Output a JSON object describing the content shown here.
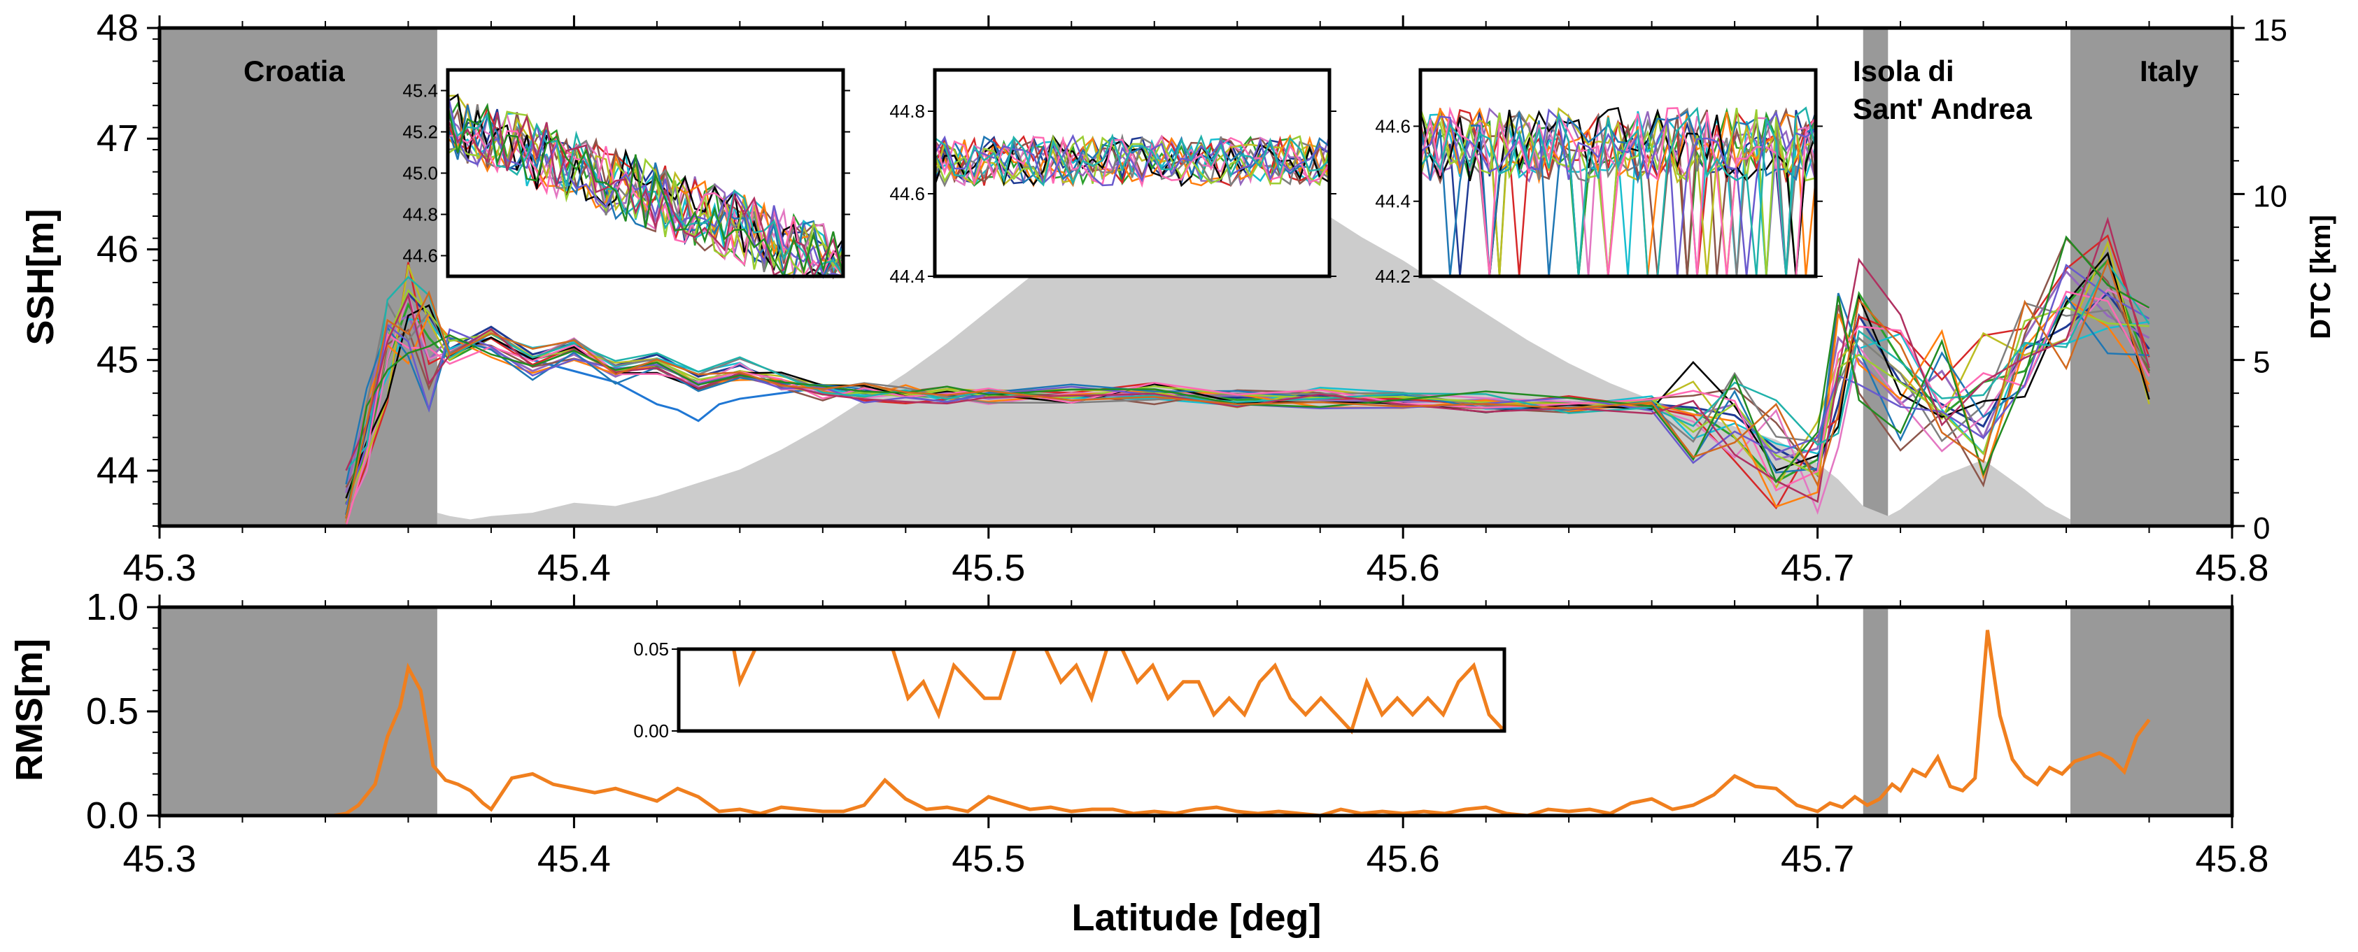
{
  "chart_data": [
    {
      "type": "line",
      "panel": "top",
      "xlabel": "",
      "ylabel": "SSH[m]",
      "ylabel_right": "DTC [km]",
      "xlim": [
        45.3,
        45.8
      ],
      "ylim": [
        43.5,
        48.0
      ],
      "ylim_right": [
        0,
        15
      ],
      "xticks": [
        45.3,
        45.4,
        45.5,
        45.6,
        45.7,
        45.8
      ],
      "xtick_labels": [
        "45.3",
        "45.4",
        "45.5",
        "45.6",
        "45.7",
        "45.8"
      ],
      "yticks": [
        44,
        45,
        46,
        47,
        48
      ],
      "ytick_labels": [
        "44",
        "45",
        "46",
        "47",
        "48"
      ],
      "yticks_right": [
        0,
        5,
        10,
        15
      ],
      "ytick_labels_right": [
        "0",
        "5",
        "10",
        "15"
      ],
      "grid": false,
      "land_regions": [
        {
          "label": "Croatia",
          "x0": 45.3,
          "x1": 45.367
        },
        {
          "label": "Isola di Sant' Andrea",
          "label_lines": [
            "Isola di",
            "Sant' Andrea"
          ],
          "x0": 45.711,
          "x1": 45.717
        },
        {
          "label": "Italy",
          "x0": 45.761,
          "x1": 45.8
        }
      ],
      "land_color": "#999999",
      "dtc_color": "#cccccc",
      "dtc_profile": {
        "lat": [
          45.367,
          45.37,
          45.375,
          45.38,
          45.39,
          45.4,
          45.41,
          45.42,
          45.43,
          45.44,
          45.45,
          45.46,
          45.47,
          45.48,
          45.49,
          45.5,
          45.51,
          45.52,
          45.53,
          45.54,
          45.55,
          45.56,
          45.57,
          45.58,
          45.585,
          45.59,
          45.6,
          45.61,
          45.62,
          45.63,
          45.64,
          45.65,
          45.66,
          45.67,
          45.68,
          45.69,
          45.7,
          45.705,
          45.711,
          45.717,
          45.72,
          45.725,
          45.73,
          45.74,
          45.75,
          45.755,
          45.761
        ],
        "dtc_km": [
          0.4,
          0.3,
          0.2,
          0.3,
          0.4,
          0.7,
          0.6,
          0.9,
          1.3,
          1.7,
          2.3,
          3.0,
          3.8,
          4.6,
          5.5,
          6.5,
          7.5,
          8.3,
          9.0,
          9.6,
          10.0,
          10.2,
          10.0,
          9.5,
          9.1,
          8.7,
          8.0,
          7.2,
          6.4,
          5.6,
          4.9,
          4.3,
          3.8,
          3.4,
          3.0,
          2.6,
          1.9,
          1.4,
          0.6,
          0.3,
          0.5,
          1.0,
          1.5,
          2.0,
          1.1,
          0.6,
          0.2
        ]
      },
      "series_note_colors": [
        "#1f3a93",
        "#2ca02c",
        "#9467bd",
        "#17becf",
        "#d62728",
        "#8c564b",
        "#e377c2",
        "#bcbd22",
        "#ff7f0e",
        "#7f7f7f",
        "#000000",
        "#1f77b4",
        "#9acd32",
        "#ff69b4",
        "#6a5acd",
        "#20b2aa",
        "#b03060",
        "#228b22",
        "#d2691e",
        "#8fbc8f"
      ],
      "series": [
        {
          "lat": [
            45.345,
            45.35,
            45.355,
            45.36,
            45.365,
            45.37,
            45.38,
            45.39,
            45.4,
            45.41,
            45.42,
            45.43,
            45.44,
            45.45,
            45.46,
            45.47,
            45.48,
            45.49,
            45.5,
            45.52,
            45.54,
            45.56,
            45.58,
            45.6,
            45.62,
            45.64,
            45.66,
            45.67,
            45.68,
            45.69,
            45.7,
            45.705,
            45.71,
            45.72,
            45.73,
            45.74,
            45.75,
            45.76,
            45.77,
            45.78
          ],
          "ssh": [
            43.6,
            44.4,
            45.2,
            45.6,
            45.4,
            45.1,
            45.3,
            45.05,
            45.15,
            44.95,
            45.05,
            44.85,
            44.95,
            44.8,
            44.75,
            44.72,
            44.7,
            44.68,
            44.68,
            44.66,
            44.7,
            44.66,
            44.68,
            44.63,
            44.62,
            44.6,
            44.6,
            44.57,
            44.5,
            44.2,
            44.0,
            44.6,
            45.4,
            44.8,
            44.6,
            44.4,
            45.1,
            45.3,
            45.6,
            45.1
          ]
        },
        {
          "lat": [
            45.345,
            45.35,
            45.355,
            45.36,
            45.365,
            45.37,
            45.38,
            45.39,
            45.4,
            45.41,
            45.42,
            45.43,
            45.44,
            45.45,
            45.46,
            45.47,
            45.48,
            45.49,
            45.5,
            45.52,
            45.54,
            45.56,
            45.58,
            45.6,
            45.62,
            45.64,
            45.66,
            45.67,
            45.68,
            45.69,
            45.7,
            45.705,
            45.71,
            45.72,
            45.73,
            45.74,
            45.75,
            45.76,
            45.77,
            45.78
          ],
          "ssh": [
            43.7,
            44.2,
            45.0,
            45.5,
            45.2,
            45.0,
            45.2,
            45.0,
            45.1,
            44.9,
            44.95,
            44.8,
            44.9,
            44.82,
            44.73,
            44.7,
            44.68,
            44.66,
            44.7,
            44.68,
            44.72,
            44.64,
            44.66,
            44.65,
            44.6,
            44.62,
            44.58,
            44.55,
            44.3,
            43.9,
            44.1,
            44.8,
            45.6,
            45.0,
            44.5,
            44.8,
            44.9,
            45.5,
            45.9,
            44.9
          ]
        },
        {
          "lat": [
            45.345,
            45.35,
            45.355,
            45.36,
            45.365,
            45.37,
            45.38,
            45.39,
            45.4,
            45.41,
            45.42,
            45.43,
            45.44,
            45.45,
            45.46,
            45.47,
            45.48,
            45.49,
            45.5,
            45.52,
            45.54,
            45.56,
            45.58,
            45.6,
            45.62,
            45.64,
            45.66,
            45.67,
            45.68,
            45.69,
            45.7,
            45.705,
            45.71,
            45.72,
            45.73,
            45.74,
            45.75,
            45.76,
            45.77,
            45.78
          ],
          "ssh": [
            43.8,
            44.6,
            45.3,
            45.4,
            45.0,
            45.2,
            45.1,
            44.9,
            45.05,
            44.85,
            45.0,
            44.75,
            44.85,
            44.76,
            44.7,
            44.68,
            44.72,
            44.7,
            44.65,
            44.7,
            44.66,
            44.68,
            44.64,
            44.62,
            44.64,
            44.58,
            44.62,
            44.5,
            44.6,
            44.1,
            44.2,
            45.2,
            45.0,
            44.6,
            44.9,
            44.3,
            45.2,
            45.8,
            45.4,
            45.2
          ]
        },
        {
          "lat": [
            45.37,
            45.38,
            45.39,
            45.4,
            45.41,
            45.42,
            45.425,
            45.43,
            45.435,
            45.44,
            45.45,
            45.46
          ],
          "ssh": [
            45.1,
            45.2,
            45.0,
            44.9,
            44.8,
            44.6,
            44.55,
            44.45,
            44.6,
            44.65,
            44.7,
            44.75
          ]
        }
      ]
    },
    {
      "type": "line",
      "panel": "bottom",
      "xlabel": "Latitude [deg]",
      "ylabel": "RMS[m]",
      "xlim": [
        45.3,
        45.8
      ],
      "ylim": [
        0.0,
        1.0
      ],
      "xticks": [
        45.3,
        45.4,
        45.5,
        45.6,
        45.7,
        45.8
      ],
      "xtick_labels": [
        "45.3",
        "45.4",
        "45.5",
        "45.6",
        "45.7",
        "45.8"
      ],
      "yticks": [
        0.0,
        0.5,
        1.0
      ],
      "ytick_labels": [
        "0.0",
        "0.5",
        "1.0"
      ],
      "grid": false,
      "line_color": "#f07f1e",
      "land_regions": [
        {
          "x0": 45.3,
          "x1": 45.367
        },
        {
          "x0": 45.711,
          "x1": 45.717
        },
        {
          "x0": 45.761,
          "x1": 45.8
        }
      ],
      "land_color": "#999999",
      "series": [
        {
          "lat": [
            45.342,
            45.345,
            45.348,
            45.352,
            45.355,
            45.358,
            45.36,
            45.363,
            45.366,
            45.369,
            45.372,
            45.375,
            45.378,
            45.38,
            45.385,
            45.39,
            45.395,
            45.4,
            45.405,
            45.41,
            45.415,
            45.42,
            45.425,
            45.43,
            45.435,
            45.44,
            45.445,
            45.45,
            45.455,
            45.46,
            45.465,
            45.47,
            45.475,
            45.48,
            45.485,
            45.49,
            45.495,
            45.5,
            45.505,
            45.51,
            45.515,
            45.52,
            45.525,
            45.53,
            45.535,
            45.54,
            45.545,
            45.55,
            45.555,
            45.56,
            45.565,
            45.57,
            45.575,
            45.58,
            45.585,
            45.59,
            45.595,
            45.6,
            45.605,
            45.61,
            45.615,
            45.62,
            45.625,
            45.63,
            45.635,
            45.64,
            45.645,
            45.65,
            45.655,
            45.66,
            45.665,
            45.67,
            45.675,
            45.68,
            45.685,
            45.69,
            45.695,
            45.7,
            45.703,
            45.706,
            45.709,
            45.712,
            45.715,
            45.718,
            45.72,
            45.723,
            45.726,
            45.729,
            45.732,
            45.735,
            45.738,
            45.741,
            45.744,
            45.747,
            45.75,
            45.753,
            45.756,
            45.759,
            45.762,
            45.765,
            45.768,
            45.771,
            45.774,
            45.777,
            45.78
          ],
          "rms": [
            0.0,
            0.01,
            0.05,
            0.15,
            0.38,
            0.52,
            0.71,
            0.6,
            0.24,
            0.17,
            0.15,
            0.12,
            0.06,
            0.03,
            0.18,
            0.2,
            0.15,
            0.13,
            0.11,
            0.13,
            0.1,
            0.07,
            0.13,
            0.09,
            0.02,
            0.03,
            0.01,
            0.04,
            0.03,
            0.02,
            0.02,
            0.05,
            0.17,
            0.08,
            0.03,
            0.04,
            0.02,
            0.09,
            0.06,
            0.03,
            0.04,
            0.02,
            0.03,
            0.03,
            0.01,
            0.02,
            0.01,
            0.03,
            0.04,
            0.02,
            0.01,
            0.02,
            0.01,
            0.0,
            0.03,
            0.01,
            0.02,
            0.01,
            0.02,
            0.01,
            0.03,
            0.04,
            0.01,
            0.0,
            0.03,
            0.02,
            0.03,
            0.01,
            0.06,
            0.08,
            0.03,
            0.05,
            0.1,
            0.19,
            0.14,
            0.13,
            0.05,
            0.02,
            0.06,
            0.04,
            0.09,
            0.05,
            0.08,
            0.15,
            0.12,
            0.22,
            0.19,
            0.28,
            0.14,
            0.12,
            0.18,
            0.89,
            0.48,
            0.27,
            0.19,
            0.15,
            0.23,
            0.2,
            0.26,
            0.28,
            0.3,
            0.27,
            0.21,
            0.38,
            0.46
          ]
        }
      ]
    }
  ],
  "insets": {
    "ssh_1": {
      "yticks": [
        "44.6",
        "44.8",
        "45.0",
        "45.2",
        "45.4"
      ],
      "ylim": [
        44.5,
        45.5
      ]
    },
    "ssh_2": {
      "yticks": [
        "44.4",
        "44.6",
        "44.8"
      ],
      "ylim": [
        44.4,
        44.9
      ]
    },
    "ssh_3": {
      "yticks": [
        "44.2",
        "44.4",
        "44.6"
      ],
      "ylim": [
        44.2,
        44.75
      ]
    },
    "rms": {
      "yticks": [
        "0.00",
        "0.05"
      ],
      "ylim": [
        0.0,
        0.05
      ]
    }
  }
}
